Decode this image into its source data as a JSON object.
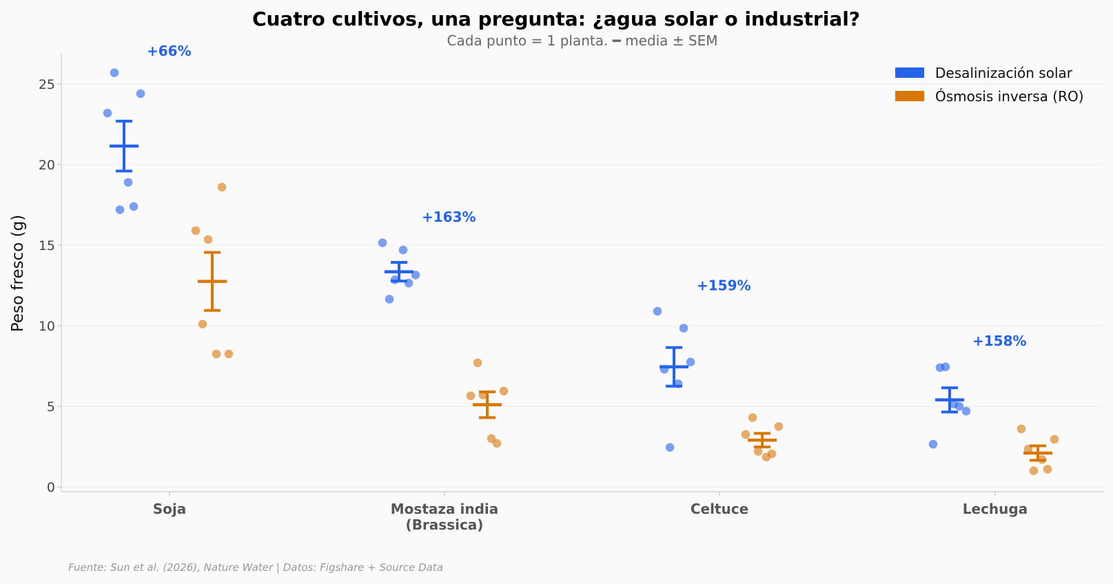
{
  "chart_data": {
    "type": "scatter",
    "title": "Cuatro cultivos, una pregunta: ¿agua solar o industrial?",
    "subtitle": "Cada punto = 1 planta. ━ media ± SEM",
    "ylabel": "Peso fresco (g)",
    "xlabel": "",
    "ylim": [
      -0.3,
      27
    ],
    "yticks": [
      0,
      5,
      10,
      15,
      20,
      25
    ],
    "grid": true,
    "legend_position": "top-right",
    "source": "Fuente: Sun et al. (2026), Nature Water | Datos: Figshare + Source Data",
    "categories": [
      {
        "label_line1": "Soja",
        "label_line2": ""
      },
      {
        "label_line1": "Mostaza india",
        "label_line2": "(Brassica)"
      },
      {
        "label_line1": "Celtuce",
        "label_line2": ""
      },
      {
        "label_line1": "Lechuga",
        "label_line2": ""
      }
    ],
    "increase_labels": [
      "+66%",
      "+163%",
      "+159%",
      "+158%"
    ],
    "series": [
      {
        "name": "Desalinización solar",
        "color": "#2563eb",
        "groups": [
          {
            "mean": 21.15,
            "sem": 1.55,
            "points": [
              23.2,
              25.7,
              18.9,
              17.2,
              17.4,
              24.4
            ]
          },
          {
            "mean": 13.35,
            "sem": 0.58,
            "points": [
              15.15,
              11.65,
              14.7,
              12.85,
              12.65,
              13.15
            ]
          },
          {
            "mean": 7.45,
            "sem": 1.2,
            "points": [
              10.9,
              7.3,
              6.4,
              2.45,
              9.85,
              7.75
            ]
          },
          {
            "mean": 5.4,
            "sem": 0.75,
            "points": [
              2.65,
              7.4,
              5.15,
              7.45,
              5.0,
              4.7
            ]
          }
        ]
      },
      {
        "name": "Ósmosis inversa (RO)",
        "color": "#d97706",
        "groups": [
          {
            "mean": 12.75,
            "sem": 1.8,
            "points": [
              15.9,
              10.1,
              8.25,
              15.35,
              18.6,
              8.25
            ]
          },
          {
            "mean": 5.1,
            "sem": 0.8,
            "points": [
              5.65,
              7.7,
              3.0,
              5.7,
              2.7,
              5.95
            ]
          },
          {
            "mean": 2.9,
            "sem": 0.42,
            "points": [
              3.25,
              4.3,
              1.85,
              2.2,
              2.05,
              3.75
            ]
          },
          {
            "mean": 2.1,
            "sem": 0.45,
            "points": [
              3.6,
              2.35,
              1.7,
              1.0,
              1.1,
              2.95
            ]
          }
        ]
      }
    ]
  }
}
